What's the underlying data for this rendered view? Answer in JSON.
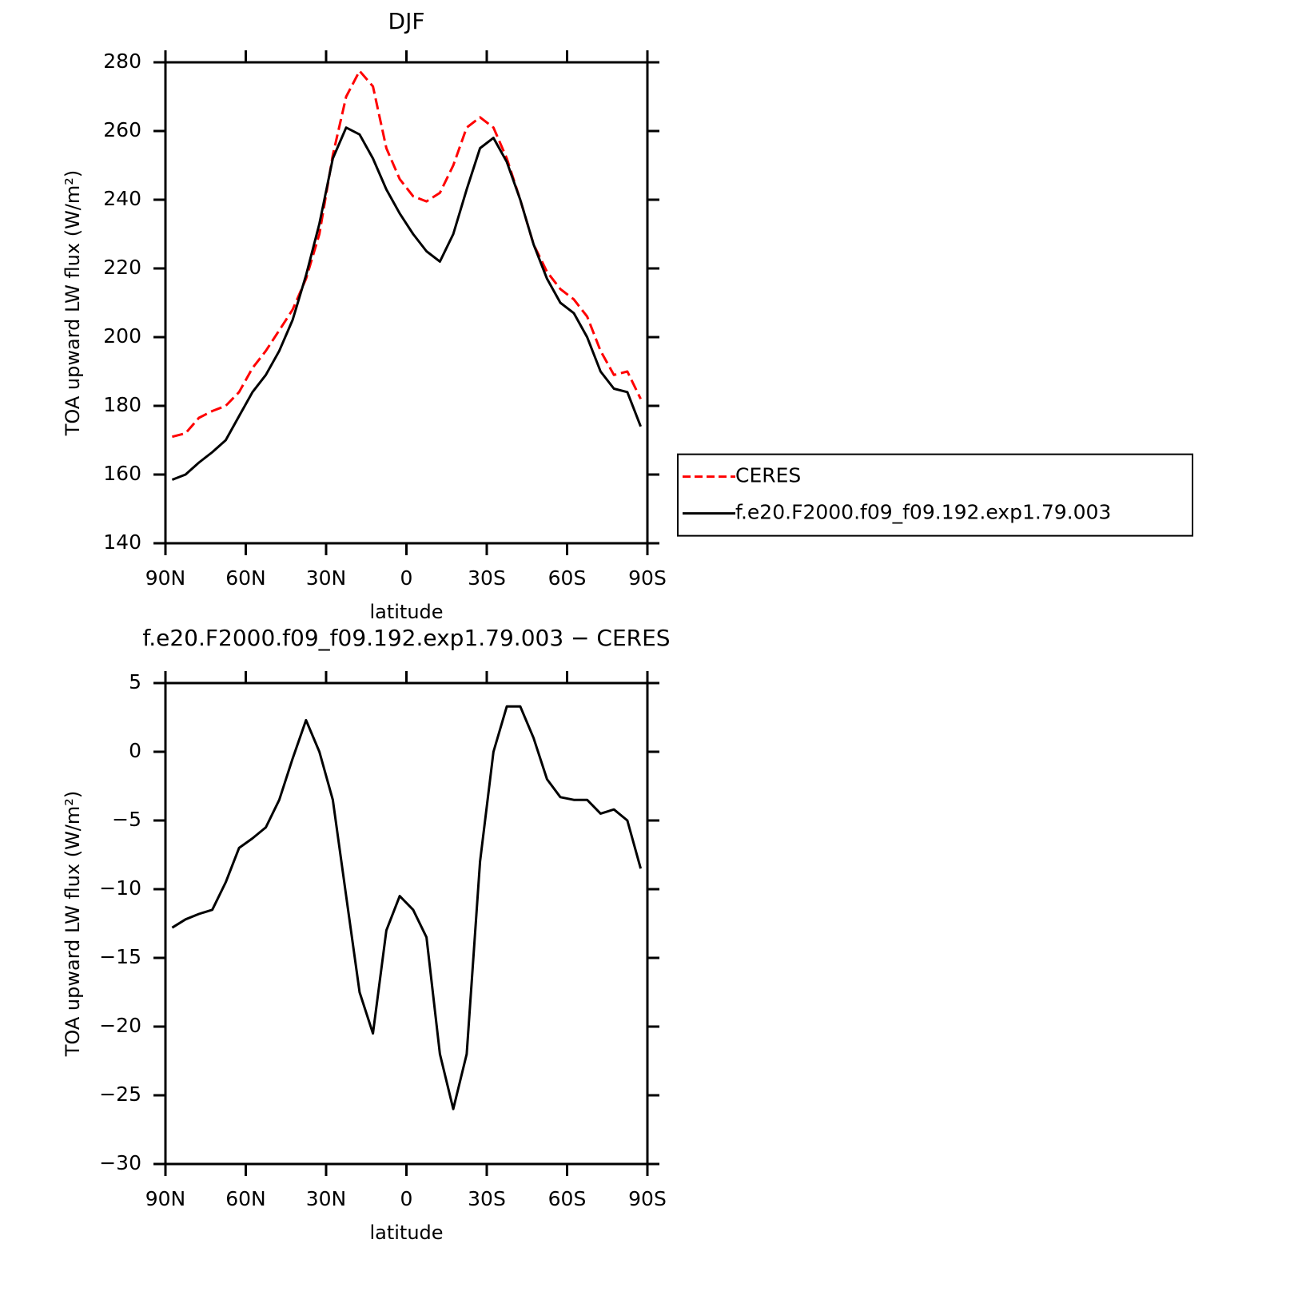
{
  "chart_data": [
    {
      "type": "line",
      "title": "DJF",
      "x_label": "latitude",
      "y_label": "TOA upward LW flux (W/m²)",
      "x": [
        87.5,
        82.5,
        77.5,
        72.5,
        67.5,
        62.5,
        57.5,
        52.5,
        47.5,
        42.5,
        37.5,
        32.5,
        27.5,
        22.5,
        17.5,
        12.5,
        7.5,
        2.5,
        -2.5,
        -7.5,
        -12.5,
        -17.5,
        -22.5,
        -27.5,
        -32.5,
        -37.5,
        -42.5,
        -47.5,
        -52.5,
        -57.5,
        -62.5,
        -67.5,
        -72.5,
        -77.5,
        -82.5,
        -87.5
      ],
      "series": [
        {
          "name": "CERES",
          "color": "#ff0000",
          "line_style": "dashed",
          "values": [
            171,
            172,
            176.5,
            178.5,
            180,
            184,
            191,
            196,
            202,
            208,
            217,
            230,
            253,
            270,
            277.5,
            273,
            255,
            246,
            241,
            239.5,
            242,
            250,
            261,
            264,
            261,
            252,
            240,
            227,
            219,
            214,
            211,
            206,
            196,
            189,
            190,
            182
          ]
        },
        {
          "name": "f.e20.F2000.f09_f09.192.exp1.79.003",
          "color": "#000000",
          "line_style": "solid",
          "values": [
            158.5,
            160,
            163.5,
            166.5,
            170,
            177,
            184,
            189,
            196,
            205,
            218,
            233,
            252,
            261,
            259,
            252,
            243,
            236,
            230,
            225,
            222,
            230,
            243,
            255,
            258,
            251,
            240,
            227,
            217,
            210,
            207,
            200,
            190,
            185,
            184,
            174
          ]
        }
      ],
      "xlim": [
        90,
        -90
      ],
      "xticks": [
        {
          "value": 90,
          "label": "90N"
        },
        {
          "value": 60,
          "label": "60N"
        },
        {
          "value": 30,
          "label": "30N"
        },
        0,
        {
          "value": -30,
          "label": "30S"
        },
        {
          "value": -60,
          "label": "60S"
        },
        {
          "value": -90,
          "label": "90S"
        }
      ],
      "ylim": [
        140,
        280
      ],
      "yticks": [
        140,
        160,
        180,
        200,
        220,
        240,
        260,
        280
      ],
      "legend": "right"
    },
    {
      "type": "line",
      "title": "f.e20.F2000.f09_f09.192.exp1.79.003 − CERES",
      "x_label": "latitude",
      "y_label": "TOA upward LW flux (W/m²)",
      "x": [
        87.5,
        82.5,
        77.5,
        72.5,
        67.5,
        62.5,
        57.5,
        52.5,
        47.5,
        42.5,
        37.5,
        32.5,
        27.5,
        22.5,
        17.5,
        12.5,
        7.5,
        2.5,
        -2.5,
        -7.5,
        -12.5,
        -17.5,
        -22.5,
        -27.5,
        -32.5,
        -37.5,
        -42.5,
        -47.5,
        -52.5,
        -57.5,
        -62.5,
        -67.5,
        -72.5,
        -77.5,
        -82.5,
        -87.5
      ],
      "series": [
        {
          "color": "#000000",
          "line_style": "solid",
          "values": [
            -12.8,
            -12.2,
            -11.8,
            -11.5,
            -9.5,
            -7,
            -6.3,
            -5.5,
            -3.5,
            -0.5,
            2.3,
            0,
            -3.5,
            -10.5,
            -17.5,
            -20.5,
            -13,
            -10.5,
            -11.5,
            -13.5,
            -22,
            -26,
            -22,
            -8,
            0,
            3.3,
            3.3,
            1,
            -2,
            -3.3,
            -3.5,
            -3.5,
            -4.5,
            -4.2,
            -5,
            -8.5
          ]
        }
      ],
      "xlim": [
        90,
        -90
      ],
      "xticks": [
        {
          "value": 90,
          "label": "90N"
        },
        {
          "value": 60,
          "label": "60N"
        },
        {
          "value": 30,
          "label": "30N"
        },
        0,
        {
          "value": -30,
          "label": "30S"
        },
        {
          "value": -60,
          "label": "60S"
        },
        {
          "value": -90,
          "label": "90S"
        }
      ],
      "ylim": [
        -30,
        5
      ],
      "yticks": [
        {
          "value": -30,
          "label": "−30"
        },
        {
          "value": -25,
          "label": "−25"
        },
        {
          "value": -20,
          "label": "−20"
        },
        {
          "value": -15,
          "label": "−15"
        },
        {
          "value": -10,
          "label": "−10"
        },
        {
          "value": -5,
          "label": "−5"
        },
        0,
        5
      ]
    }
  ]
}
